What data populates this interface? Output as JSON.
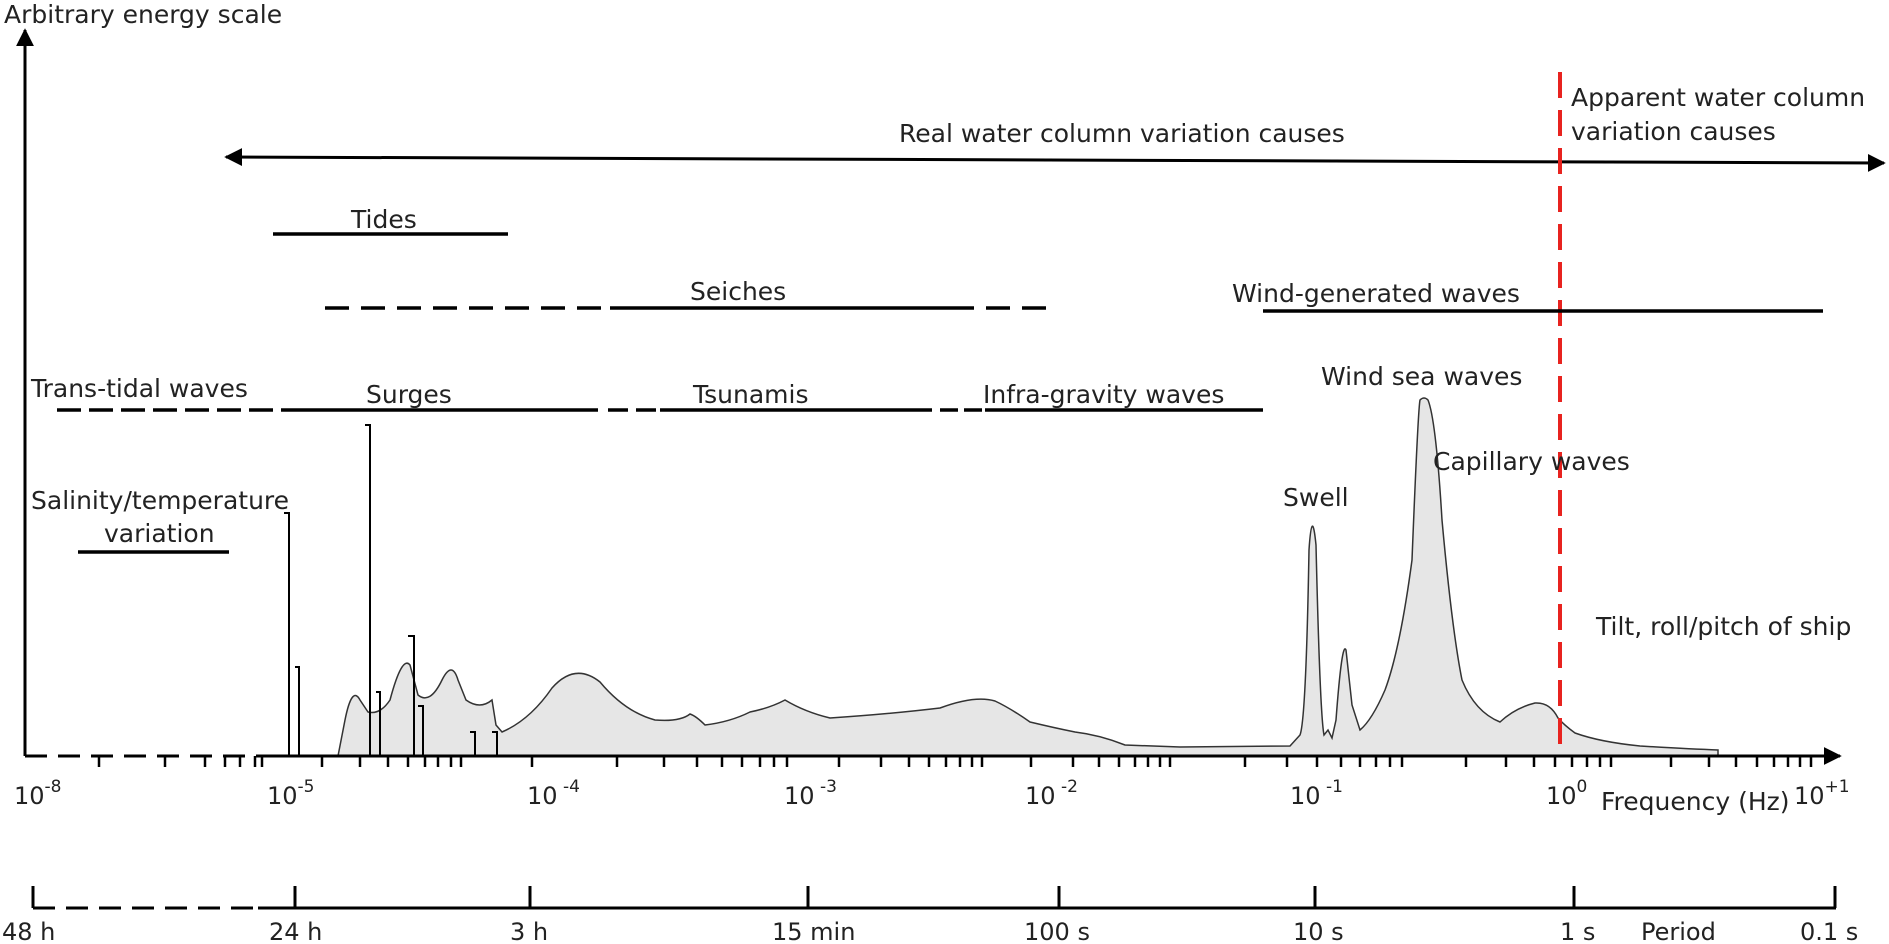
{
  "y_axis_label": "Arbitrary energy scale",
  "x_axis_label": "Frequency (Hz)",
  "period_axis_label": "Period",
  "frequency_ticks": [
    {
      "base": "10",
      "exp": "-8"
    },
    {
      "base": "10",
      "exp": "-5"
    },
    {
      "base": "10",
      "exp": " -4"
    },
    {
      "base": "10",
      "exp": " -3"
    },
    {
      "base": "10",
      "exp": " -2"
    },
    {
      "base": "10",
      "exp": " -1"
    },
    {
      "base": "10",
      "exp": "0"
    },
    {
      "base": "10",
      "exp": "+1"
    }
  ],
  "period_ticks": [
    "48 h",
    "24 h",
    "3 h",
    "15 min",
    "100 s",
    "10 s",
    "1 s",
    "0.1 s"
  ],
  "regions": {
    "real": "Real water column variation causes",
    "apparent_line1": "Apparent water column",
    "apparent_line2": "variation causes"
  },
  "phenomena": {
    "tides": "Tides",
    "seiches": "Seiches",
    "wind_generated": "Wind-generated waves",
    "trans_tidal": "Trans-tidal waves",
    "surges": "Surges",
    "tsunamis": "Tsunamis",
    "infra_gravity": "Infra-gravity waves",
    "wind_sea": "Wind sea waves",
    "capillary": "Capillary waves",
    "swell": "Swell",
    "salinity_line1": "Salinity/temperature",
    "salinity_line2": "variation",
    "tilt": "Tilt, roll/pitch of ship"
  },
  "colors": {
    "spectrum_fill": "#e6e6e6",
    "divider": "#e8231f",
    "line": "#000000"
  }
}
